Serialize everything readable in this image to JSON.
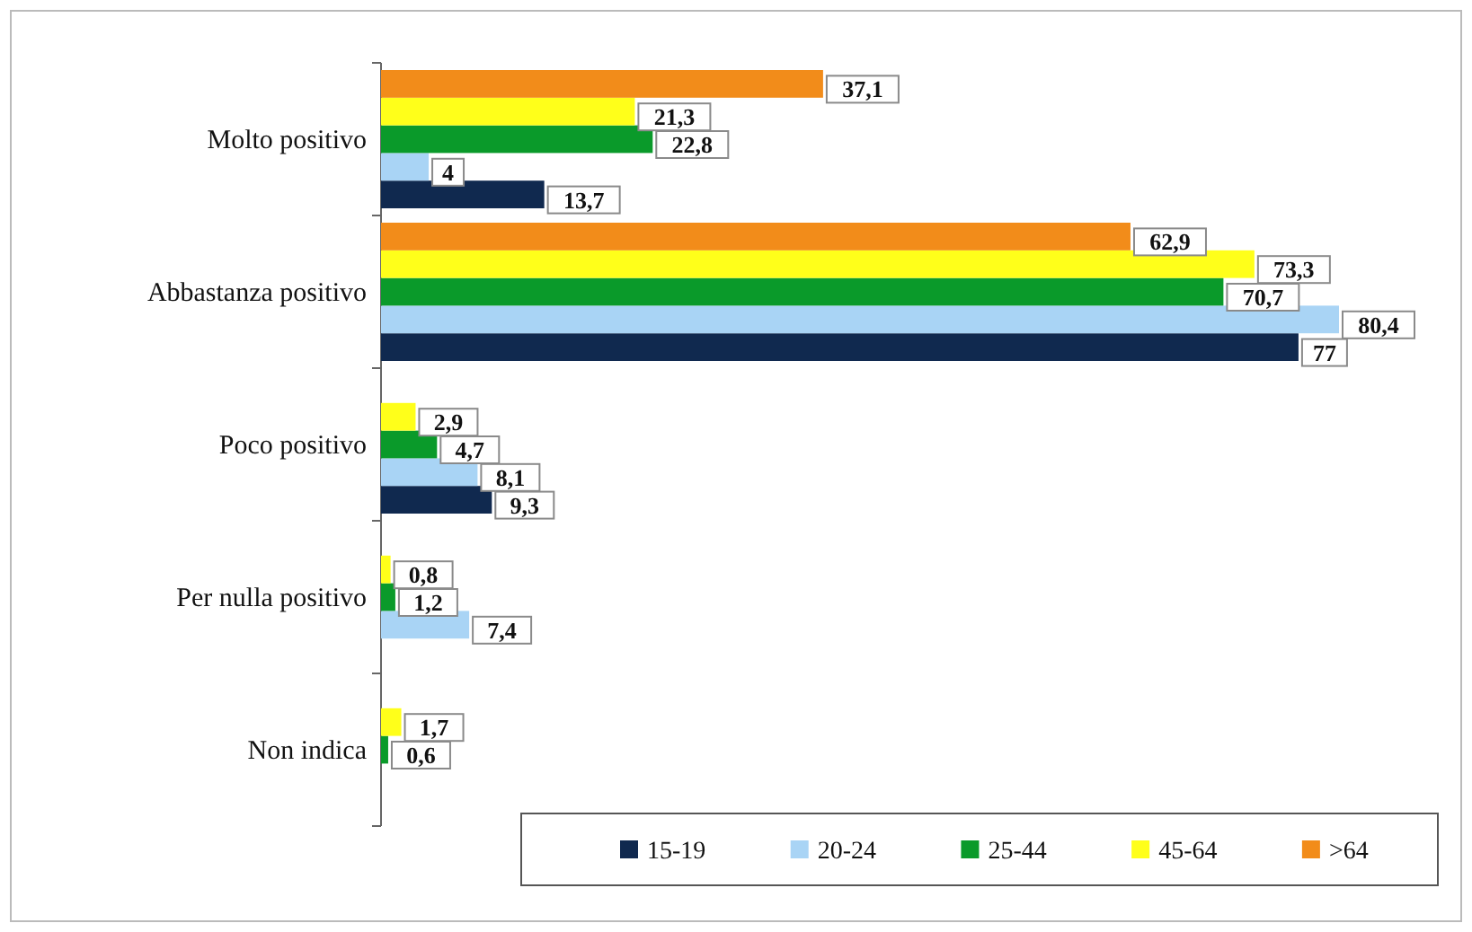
{
  "chart_data": {
    "type": "bar",
    "orientation": "horizontal",
    "categories": [
      "Molto positivo",
      "Abbastanza positivo",
      "Poco positivo",
      "Per nulla positivo",
      "Non indica"
    ],
    "series": [
      {
        "name": "15-19",
        "color": "#10294f",
        "values": [
          13.7,
          77,
          9.3,
          null,
          null
        ],
        "value_labels": [
          "13,7",
          "77",
          "9,3",
          null,
          null
        ]
      },
      {
        "name": "20-24",
        "color": "#a9d4f5",
        "values": [
          4,
          80.4,
          8.1,
          7.4,
          null
        ],
        "value_labels": [
          "4",
          "80,4",
          "8,1",
          "7,4",
          null
        ]
      },
      {
        "name": "25-44",
        "color": "#0a9a2a",
        "values": [
          22.8,
          70.7,
          4.7,
          1.2,
          0.6
        ],
        "value_labels": [
          "22,8",
          "70,7",
          "4,7",
          "1,2",
          "0,6"
        ]
      },
      {
        "name": "45-64",
        "color": "#ffff1a",
        "values": [
          21.3,
          73.3,
          2.9,
          0.8,
          1.7
        ],
        "value_labels": [
          "21,3",
          "73,3",
          "2,9",
          "0,8",
          "1,7"
        ]
      },
      {
        "name": ">64",
        "color": "#f28c1a",
        "values": [
          37.1,
          62.9,
          null,
          null,
          null
        ],
        "value_labels": [
          "37,1",
          "62,9",
          null,
          null,
          null
        ]
      }
    ],
    "legend": "bottom right"
  }
}
